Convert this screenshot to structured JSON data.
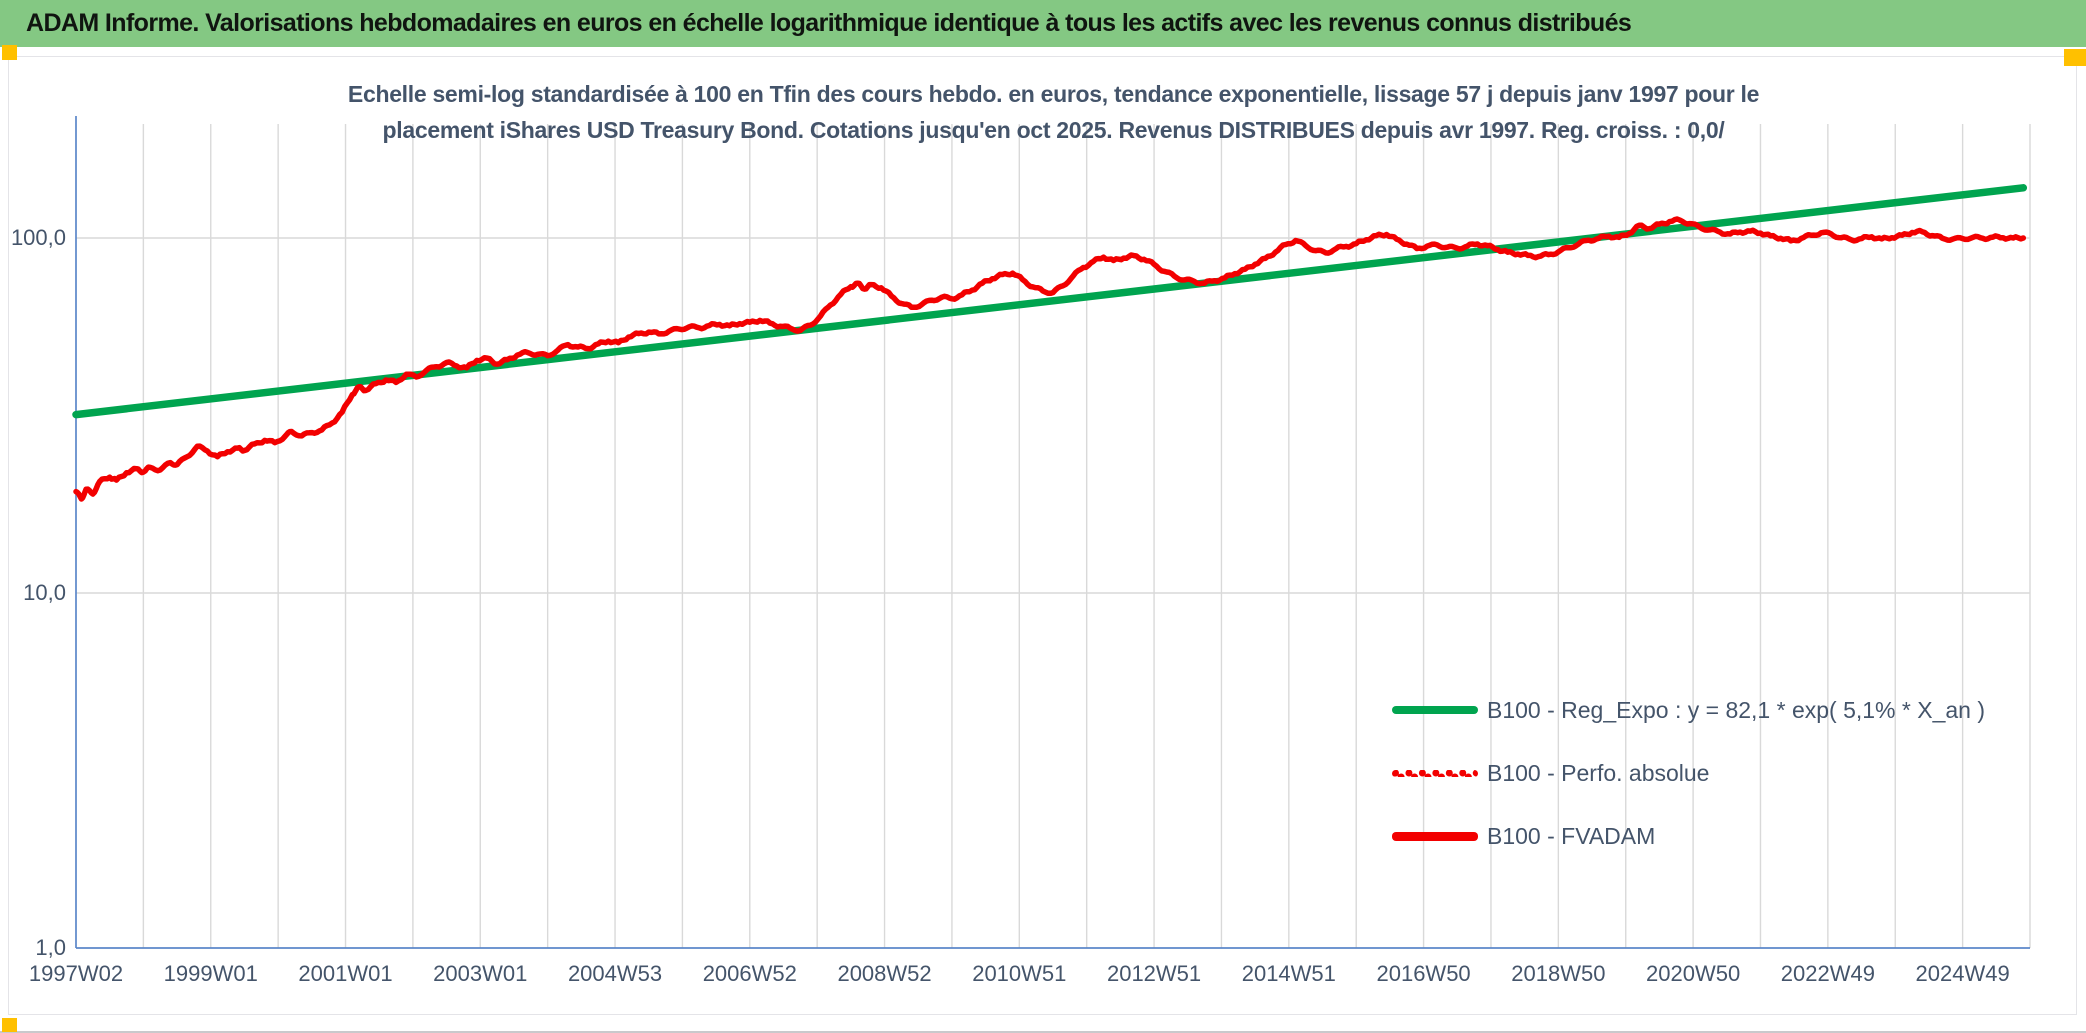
{
  "header": {
    "title": "ADAM Informe. Valorisations hebdomadaires en euros en échelle logarithmique identique à tous les actifs avec les revenus connus distribués",
    "bar_color": "#84C883",
    "accent_color": "#FFC000"
  },
  "chart": {
    "title_line1": "Echelle semi-log standardisée à 100 en Tfin des cours hebdo. en euros, tendance exponentielle, lissage 57 j depuis janv 1997 pour le",
    "title_line2": "placement iShares USD Treasury Bond. Cotations jusqu'en oct 2025. Revenus DISTRIBUES depuis avr 1997. Reg. croiss. : 0,0/",
    "title_color": "#44546A",
    "axis_text_color": "#44546A",
    "axis_line_color": "#5B87C9",
    "gridline_color": "#D9D9D9",
    "y_axis_labels": [
      "100,0",
      "10,0",
      "1,0"
    ],
    "x_axis_labels": [
      "1997W02",
      "1999W01",
      "2001W01",
      "2003W01",
      "2004W53",
      "2006W52",
      "2008W52",
      "2010W51",
      "2012W51",
      "2014W51",
      "2016W50",
      "2018W50",
      "2020W50",
      "2022W49",
      "2024W49"
    ],
    "legend": [
      {
        "label": "B100 - Reg_Expo : y = 82,1 * exp( 5,1% * X_an )",
        "color": "#00A44F",
        "style": "solid"
      },
      {
        "label": "B100 - Perfo. absolue",
        "color": "#F20000",
        "style": "dotted"
      },
      {
        "label": "B100 - FVADAM",
        "color": "#F20000",
        "style": "solid"
      }
    ]
  },
  "chart_data": {
    "type": "line",
    "title": "Echelle semi-log standardisée à 100 en Tfin des cours hebdo. en euros, tendance exponentielle, lissage 57 j depuis janv 1997 pour le placement iShares USD Treasury Bond. Cotations jusqu'en oct 2025. Revenus DISTRIBUES depuis avr 1997. Reg. croiss. : 0,0/",
    "x_axis": {
      "tick_labels": [
        "1997W02",
        "1999W01",
        "2001W01",
        "2003W01",
        "2004W53",
        "2006W52",
        "2008W52",
        "2010W51",
        "2012W51",
        "2014W51",
        "2016W50",
        "2018W50",
        "2020W50",
        "2022W49",
        "2024W49"
      ],
      "unit": "ISO week",
      "range_years": [
        1997.0,
        2026.0
      ]
    },
    "y_axis": {
      "scale": "log10",
      "tick_labels": [
        "100,0",
        "10,0",
        "1,0"
      ],
      "tick_values": [
        100,
        10,
        1
      ],
      "ylim": [
        1,
        200
      ],
      "base_value_end": 100
    },
    "grid": "vertical major every year, horizontal at log decades",
    "legend_position": "center-right inside plot",
    "series": [
      {
        "name": "B100 - Reg_Expo : y = 82,1 * exp( 5,1% * X_an )",
        "color": "#00A44F",
        "style": "solid",
        "model": "y = 82,1 * exp( 5,1% * X_an )",
        "points": [
          [
            1997.0,
            31.8
          ],
          [
            2025.9,
            138.5
          ]
        ]
      },
      {
        "name": "B100 - Perfo. absolue",
        "color": "#F20000",
        "style": "dotted",
        "note": "trace coincides with B100 - FVADAM (revenus distribués)"
      },
      {
        "name": "B100 - FVADAM",
        "color": "#F20000",
        "style": "solid",
        "points": [
          [
            1997.0,
            19.3
          ],
          [
            1997.08,
            18.4
          ],
          [
            1997.15,
            19.6
          ],
          [
            1997.25,
            19.0
          ],
          [
            1997.35,
            20.6
          ],
          [
            1997.5,
            21.2
          ],
          [
            1997.6,
            20.8
          ],
          [
            1997.75,
            21.8
          ],
          [
            1997.9,
            22.4
          ],
          [
            1998.0,
            21.9
          ],
          [
            1998.1,
            22.6
          ],
          [
            1998.25,
            22.2
          ],
          [
            1998.4,
            23.3
          ],
          [
            1998.5,
            23.0
          ],
          [
            1998.65,
            24.2
          ],
          [
            1998.8,
            25.9
          ],
          [
            1998.95,
            25.1
          ],
          [
            1999.1,
            24.2
          ],
          [
            1999.25,
            25.0
          ],
          [
            1999.4,
            25.6
          ],
          [
            1999.5,
            25.2
          ],
          [
            1999.65,
            26.3
          ],
          [
            1999.8,
            26.9
          ],
          [
            1999.95,
            26.5
          ],
          [
            2000.1,
            27.6
          ],
          [
            2000.2,
            28.5
          ],
          [
            2000.35,
            27.7
          ],
          [
            2000.5,
            28.3
          ],
          [
            2000.65,
            28.8
          ],
          [
            2000.8,
            30.1
          ],
          [
            2000.95,
            32.3
          ],
          [
            2001.1,
            36.2
          ],
          [
            2001.2,
            38.1
          ],
          [
            2001.3,
            37.2
          ],
          [
            2001.45,
            38.9
          ],
          [
            2001.6,
            39.8
          ],
          [
            2001.75,
            39.2
          ],
          [
            2001.9,
            41.3
          ],
          [
            2002.05,
            40.6
          ],
          [
            2002.2,
            42.4
          ],
          [
            2002.35,
            43.4
          ],
          [
            2002.5,
            44.6
          ],
          [
            2002.65,
            43.6
          ],
          [
            2002.8,
            43.1
          ],
          [
            2002.95,
            45.2
          ],
          [
            2003.1,
            45.9
          ],
          [
            2003.25,
            44.1
          ],
          [
            2003.4,
            45.4
          ],
          [
            2003.55,
            46.8
          ],
          [
            2003.7,
            47.6
          ],
          [
            2003.85,
            47.0
          ],
          [
            2004.0,
            46.6
          ],
          [
            2004.15,
            48.3
          ],
          [
            2004.3,
            50.1
          ],
          [
            2004.45,
            49.3
          ],
          [
            2004.6,
            48.8
          ],
          [
            2004.75,
            50.3
          ],
          [
            2004.9,
            51.2
          ],
          [
            2005.05,
            50.7
          ],
          [
            2005.2,
            52.6
          ],
          [
            2005.35,
            53.8
          ],
          [
            2005.5,
            54.3
          ],
          [
            2005.65,
            53.7
          ],
          [
            2005.8,
            54.6
          ],
          [
            2005.95,
            55.4
          ],
          [
            2006.1,
            56.2
          ],
          [
            2006.25,
            55.8
          ],
          [
            2006.4,
            56.7
          ],
          [
            2006.55,
            57.1
          ],
          [
            2006.7,
            56.6
          ],
          [
            2006.85,
            57.4
          ],
          [
            2007.0,
            57.9
          ],
          [
            2007.15,
            58.6
          ],
          [
            2007.3,
            57.6
          ],
          [
            2007.45,
            56.4
          ],
          [
            2007.6,
            55.7
          ],
          [
            2007.75,
            54.9
          ],
          [
            2007.9,
            56.8
          ],
          [
            2008.05,
            60.3
          ],
          [
            2008.2,
            64.8
          ],
          [
            2008.35,
            69.4
          ],
          [
            2008.5,
            72.9
          ],
          [
            2008.6,
            74.6
          ],
          [
            2008.7,
            71.8
          ],
          [
            2008.8,
            73.9
          ],
          [
            2008.95,
            72.4
          ],
          [
            2009.1,
            68.7
          ],
          [
            2009.25,
            65.4
          ],
          [
            2009.4,
            63.8
          ],
          [
            2009.55,
            64.9
          ],
          [
            2009.7,
            66.8
          ],
          [
            2009.85,
            68.1
          ],
          [
            2010.0,
            67.4
          ],
          [
            2010.15,
            69.2
          ],
          [
            2010.3,
            71.3
          ],
          [
            2010.45,
            74.6
          ],
          [
            2010.6,
            76.8
          ],
          [
            2010.75,
            78.9
          ],
          [
            2010.9,
            79.6
          ],
          [
            2011.05,
            76.3
          ],
          [
            2011.2,
            72.8
          ],
          [
            2011.35,
            70.9
          ],
          [
            2011.5,
            70.2
          ],
          [
            2011.65,
            73.4
          ],
          [
            2011.8,
            78.2
          ],
          [
            2011.95,
            82.6
          ],
          [
            2012.1,
            85.9
          ],
          [
            2012.25,
            88.3
          ],
          [
            2012.4,
            86.4
          ],
          [
            2012.55,
            87.8
          ],
          [
            2012.7,
            89.2
          ],
          [
            2012.85,
            87.1
          ],
          [
            2013.0,
            84.3
          ],
          [
            2013.15,
            80.6
          ],
          [
            2013.3,
            78.1
          ],
          [
            2013.45,
            76.2
          ],
          [
            2013.6,
            75.4
          ],
          [
            2013.75,
            74.6
          ],
          [
            2013.9,
            75.8
          ],
          [
            2014.05,
            77.2
          ],
          [
            2014.2,
            79.4
          ],
          [
            2014.35,
            81.6
          ],
          [
            2014.5,
            84.3
          ],
          [
            2014.65,
            87.6
          ],
          [
            2014.8,
            91.2
          ],
          [
            2014.95,
            95.8
          ],
          [
            2015.1,
            98.4
          ],
          [
            2015.25,
            95.2
          ],
          [
            2015.4,
            92.1
          ],
          [
            2015.55,
            90.8
          ],
          [
            2015.7,
            93.3
          ],
          [
            2015.85,
            94.7
          ],
          [
            2016.0,
            96.4
          ],
          [
            2016.15,
            98.9
          ],
          [
            2016.3,
            101.6
          ],
          [
            2016.45,
            102.3
          ],
          [
            2016.6,
            99.2
          ],
          [
            2016.75,
            96.1
          ],
          [
            2016.9,
            93.4
          ],
          [
            2017.05,
            94.8
          ],
          [
            2017.2,
            95.6
          ],
          [
            2017.35,
            94.2
          ],
          [
            2017.5,
            93.6
          ],
          [
            2017.65,
            94.9
          ],
          [
            2017.8,
            96.2
          ],
          [
            2017.95,
            95.1
          ],
          [
            2018.1,
            92.8
          ],
          [
            2018.25,
            91.2
          ],
          [
            2018.4,
            90.1
          ],
          [
            2018.55,
            89.3
          ],
          [
            2018.7,
            88.6
          ],
          [
            2018.85,
            89.8
          ],
          [
            2019.0,
            91.4
          ],
          [
            2019.15,
            93.9
          ],
          [
            2019.3,
            96.2
          ],
          [
            2019.45,
            98.6
          ],
          [
            2019.6,
            99.8
          ],
          [
            2019.75,
            101.2
          ],
          [
            2019.9,
            100.4
          ],
          [
            2020.05,
            102.8
          ],
          [
            2020.2,
            108.6
          ],
          [
            2020.35,
            106.2
          ],
          [
            2020.5,
            109.4
          ],
          [
            2020.65,
            111.2
          ],
          [
            2020.8,
            112.4
          ],
          [
            2020.95,
            109.8
          ],
          [
            2021.1,
            107.2
          ],
          [
            2021.25,
            105.4
          ],
          [
            2021.4,
            103.8
          ],
          [
            2021.55,
            102.6
          ],
          [
            2021.7,
            103.9
          ],
          [
            2021.85,
            104.6
          ],
          [
            2022.0,
            103.2
          ],
          [
            2022.15,
            101.4
          ],
          [
            2022.3,
            99.8
          ],
          [
            2022.45,
            98.2
          ],
          [
            2022.6,
            99.6
          ],
          [
            2022.75,
            101.8
          ],
          [
            2022.9,
            103.4
          ],
          [
            2023.05,
            102.6
          ],
          [
            2023.2,
            100.2
          ],
          [
            2023.35,
            98.8
          ],
          [
            2023.5,
            99.6
          ],
          [
            2023.65,
            100.8
          ],
          [
            2023.8,
            99.4
          ],
          [
            2023.95,
            100.2
          ],
          [
            2024.1,
            101.8
          ],
          [
            2024.25,
            103.6
          ],
          [
            2024.4,
            104.2
          ],
          [
            2024.55,
            101.6
          ],
          [
            2024.7,
            99.8
          ],
          [
            2024.85,
            99.2
          ],
          [
            2025.0,
            99.6
          ],
          [
            2025.15,
            100.4
          ],
          [
            2025.3,
            99.8
          ],
          [
            2025.45,
            100.6
          ],
          [
            2025.6,
            100.2
          ],
          [
            2025.75,
            100.0
          ],
          [
            2025.9,
            100.0
          ]
        ]
      }
    ]
  }
}
